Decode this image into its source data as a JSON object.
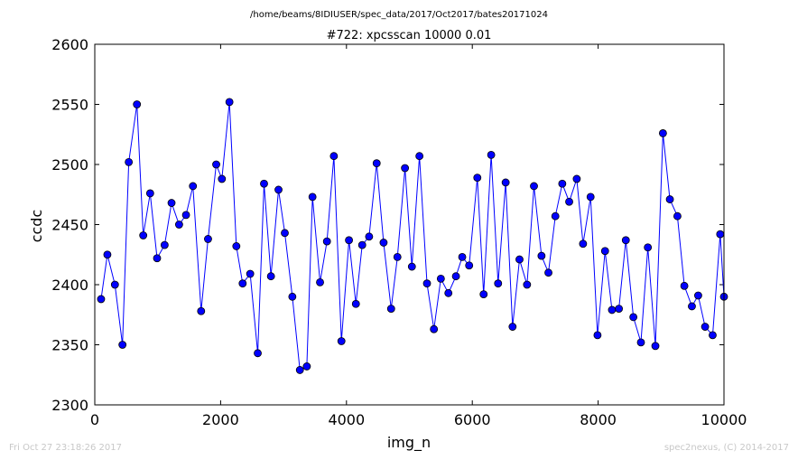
{
  "chart_data": {
    "type": "line",
    "suptitle": "/home/beams/8IDIUSER/spec_data/2017/Oct2017/bates20171024",
    "title": "#722: xpcsscan 10000 0.01",
    "xlabel": "img_n",
    "ylabel": "ccdc",
    "xlim": [
      0,
      10000
    ],
    "ylim": [
      2300,
      2600
    ],
    "xticks": [
      "0",
      "2000",
      "4000",
      "6000",
      "8000",
      "10000"
    ],
    "yticks": [
      "2300",
      "2350",
      "2400",
      "2450",
      "2500",
      "2550",
      "2600"
    ],
    "grid": false,
    "color": "#0000ff",
    "marker": "circle",
    "x": [
      100,
      200,
      320,
      440,
      540,
      670,
      770,
      880,
      990,
      1110,
      1220,
      1340,
      1450,
      1560,
      1690,
      1800,
      1930,
      2020,
      2140,
      2250,
      2350,
      2470,
      2590,
      2690,
      2800,
      2920,
      3020,
      3140,
      3260,
      3370,
      3460,
      3580,
      3690,
      3800,
      3920,
      4040,
      4150,
      4250,
      4360,
      4480,
      4590,
      4710,
      4810,
      4930,
      5040,
      5160,
      5280,
      5390,
      5500,
      5620,
      5740,
      5840,
      5950,
      6080,
      6180,
      6300,
      6410,
      6530,
      6640,
      6750,
      6870,
      6980,
      7100,
      7210,
      7320,
      7430,
      7540,
      7660,
      7760,
      7880,
      7990,
      8110,
      8220,
      8330,
      8440,
      8560,
      8680,
      8790,
      8910,
      9030,
      9140,
      9260,
      9370,
      9490,
      9590,
      9700,
      9820,
      9940,
      10000
    ],
    "y": [
      2388,
      2425,
      2400,
      2350,
      2502,
      2550,
      2441,
      2476,
      2422,
      2433,
      2468,
      2450,
      2458,
      2482,
      2378,
      2438,
      2500,
      2488,
      2552,
      2432,
      2401,
      2409,
      2343,
      2484,
      2407,
      2479,
      2443,
      2390,
      2329,
      2332,
      2473,
      2402,
      2436,
      2507,
      2353,
      2437,
      2384,
      2433,
      2440,
      2501,
      2435,
      2380,
      2423,
      2497,
      2415,
      2507,
      2401,
      2363,
      2405,
      2393,
      2407,
      2423,
      2416,
      2489,
      2392,
      2508,
      2401,
      2485,
      2365,
      2421,
      2400,
      2482,
      2424,
      2410,
      2457,
      2484,
      2469,
      2488,
      2434,
      2473,
      2358,
      2428,
      2379,
      2380,
      2437,
      2373,
      2352,
      2431,
      2349,
      2526,
      2471,
      2457,
      2399,
      2382,
      2391,
      2365,
      2358,
      2442,
      2390
    ]
  },
  "footer": {
    "left": "Fri Oct 27 23:18:26 2017",
    "right": "spec2nexus, (C) 2014-2017"
  }
}
